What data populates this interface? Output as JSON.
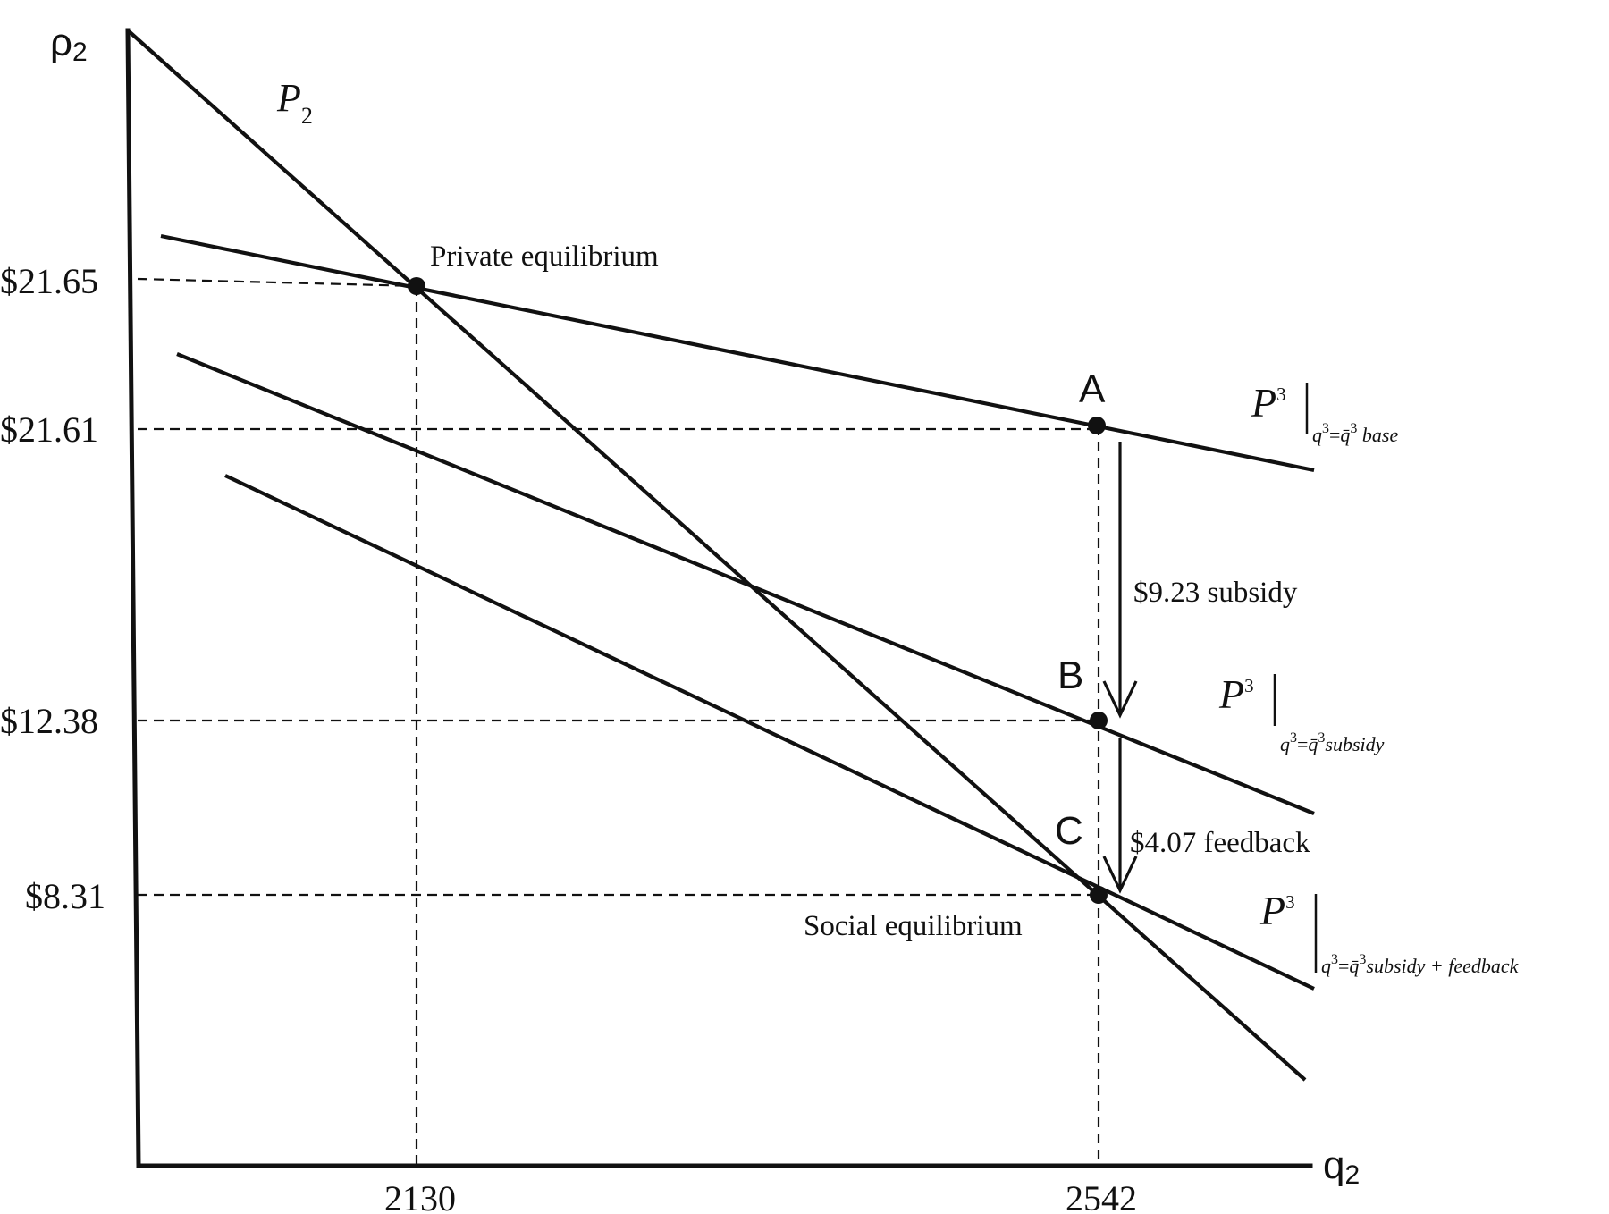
{
  "axes": {
    "y_label": "ρ",
    "y_label_sub": "2",
    "x_label": "q",
    "x_label_sub": "2"
  },
  "y_ticks": [
    "$21.65",
    "$21.61",
    "$12.38",
    "$8.31"
  ],
  "x_ticks": [
    "2130",
    "2542"
  ],
  "curves": {
    "demand_letter": "P",
    "demand_sub": "2",
    "supply_letter": "P",
    "supply_sup": "3",
    "supply_cond_q": "q",
    "supply_cond_sup": "3",
    "supply_cond_eq": "=",
    "supply_cond_qbar": "q̄",
    "base_suffix": " base",
    "subsidy_suffix": "subsidy",
    "feedback_suffix": "subsidy + feedback"
  },
  "points": {
    "A": "A",
    "B": "B",
    "C": "C"
  },
  "annotations": {
    "private_equilibrium": "Private equilibrium",
    "social_equilibrium": "Social equilibrium",
    "subsidy": "$9.23 subsidy",
    "feedback": "$4.07 feedback"
  }
}
